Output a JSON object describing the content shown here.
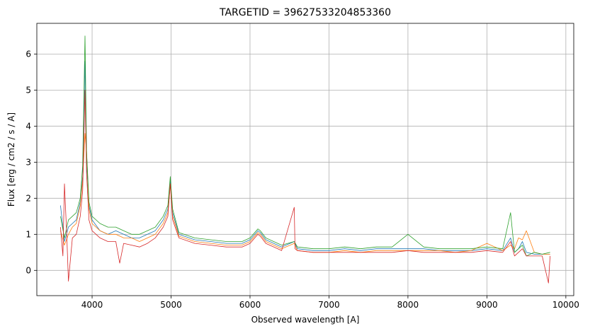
{
  "chart_data": {
    "type": "line",
    "title": "TARGETID = 39627533204853360",
    "xlabel": "Observed wavelength [A]",
    "ylabel": "Flux [erg / cm2 / s / A]",
    "xlim": [
      3300,
      10100
    ],
    "ylim": [
      -0.7,
      6.85
    ],
    "xticks": [
      4000,
      5000,
      6000,
      7000,
      8000,
      9000,
      10000
    ],
    "yticks": [
      0,
      1,
      2,
      3,
      4,
      5,
      6
    ],
    "grid": true,
    "legend": "none",
    "colors": [
      "#1f77b4",
      "#ff7f0e",
      "#2ca02c",
      "#d62728"
    ],
    "series": [
      {
        "color": "#1f77b4",
        "x": [
          3600,
          3650,
          3700,
          3750,
          3800,
          3850,
          3880,
          3910,
          3930,
          3960,
          4000,
          4100,
          4200,
          4300,
          4400,
          4500,
          4600,
          4700,
          4800,
          4900,
          4960,
          4990,
          5020,
          5100,
          5300,
          5500,
          5700,
          5900,
          6000,
          6100,
          6130,
          6200,
          6400,
          6560,
          6600,
          6800,
          7000,
          7200,
          7400,
          7600,
          7800,
          8000,
          8200,
          8400,
          8600,
          8800,
          9000,
          9200,
          9300,
          9350,
          9400,
          9450,
          9500,
          9600,
          9700,
          9800
        ],
        "y": [
          1.8,
          0.8,
          1.2,
          1.3,
          1.4,
          1.9,
          2.6,
          5.8,
          3.0,
          1.8,
          1.4,
          1.1,
          1.0,
          1.1,
          1.0,
          0.9,
          0.9,
          1.0,
          1.1,
          1.4,
          1.7,
          2.5,
          1.6,
          1.0,
          0.85,
          0.8,
          0.75,
          0.75,
          0.85,
          1.1,
          1.05,
          0.85,
          0.65,
          0.8,
          0.6,
          0.55,
          0.55,
          0.6,
          0.55,
          0.6,
          0.6,
          0.6,
          0.6,
          0.55,
          0.55,
          0.55,
          0.6,
          0.55,
          0.9,
          0.5,
          0.6,
          0.8,
          0.5,
          0.45,
          0.45,
          0.45
        ]
      },
      {
        "color": "#ff7f0e",
        "x": [
          3600,
          3650,
          3700,
          3750,
          3800,
          3850,
          3880,
          3910,
          3930,
          3960,
          4000,
          4100,
          4200,
          4300,
          4400,
          4500,
          4600,
          4700,
          4800,
          4900,
          4960,
          4990,
          5020,
          5100,
          5300,
          5500,
          5700,
          5900,
          6000,
          6100,
          6130,
          6200,
          6400,
          6560,
          6600,
          6800,
          7000,
          7200,
          7400,
          7600,
          7800,
          8000,
          8200,
          8400,
          8600,
          8800,
          9000,
          9200,
          9300,
          9350,
          9400,
          9450,
          9500,
          9600,
          9700,
          9800
        ],
        "y": [
          1.1,
          0.7,
          1.0,
          1.2,
          1.3,
          1.8,
          2.5,
          3.8,
          3.3,
          1.7,
          1.3,
          1.1,
          1.0,
          1.0,
          0.9,
          0.9,
          0.8,
          0.9,
          1.0,
          1.3,
          1.6,
          2.4,
          1.5,
          0.95,
          0.8,
          0.75,
          0.7,
          0.7,
          0.8,
          1.05,
          1.0,
          0.8,
          0.6,
          0.75,
          0.55,
          0.5,
          0.5,
          0.55,
          0.5,
          0.55,
          0.55,
          0.55,
          0.55,
          0.55,
          0.5,
          0.55,
          0.75,
          0.55,
          0.7,
          0.6,
          0.9,
          0.85,
          1.1,
          0.5,
          0.45,
          0.45
        ]
      },
      {
        "color": "#2ca02c",
        "x": [
          3600,
          3650,
          3700,
          3750,
          3800,
          3850,
          3880,
          3910,
          3930,
          3960,
          4000,
          4100,
          4200,
          4300,
          4400,
          4500,
          4600,
          4700,
          4800,
          4900,
          4960,
          4990,
          5020,
          5100,
          5300,
          5500,
          5700,
          5900,
          6000,
          6100,
          6130,
          6200,
          6400,
          6560,
          6600,
          6800,
          7000,
          7200,
          7400,
          7600,
          7800,
          8000,
          8200,
          8400,
          8600,
          8800,
          9000,
          9200,
          9300,
          9350,
          9400,
          9450,
          9500,
          9600,
          9700,
          9800
        ],
        "y": [
          1.5,
          0.9,
          1.4,
          1.5,
          1.6,
          2.0,
          2.9,
          6.5,
          3.3,
          1.9,
          1.5,
          1.3,
          1.2,
          1.2,
          1.1,
          1.0,
          1.0,
          1.1,
          1.2,
          1.5,
          1.8,
          2.6,
          1.7,
          1.05,
          0.9,
          0.85,
          0.8,
          0.8,
          0.9,
          1.15,
          1.1,
          0.9,
          0.7,
          0.8,
          0.65,
          0.6,
          0.6,
          0.65,
          0.6,
          0.65,
          0.65,
          1.0,
          0.65,
          0.6,
          0.6,
          0.6,
          0.65,
          0.6,
          1.6,
          0.5,
          0.6,
          0.7,
          0.4,
          0.5,
          0.45,
          0.5
        ]
      },
      {
        "color": "#d62728",
        "x": [
          3600,
          3630,
          3650,
          3680,
          3700,
          3750,
          3800,
          3850,
          3880,
          3910,
          3930,
          3960,
          4000,
          4100,
          4200,
          4300,
          4350,
          4400,
          4500,
          4600,
          4700,
          4800,
          4900,
          4960,
          4990,
          5020,
          5100,
          5300,
          5500,
          5700,
          5900,
          6000,
          6100,
          6130,
          6200,
          6400,
          6560,
          6570,
          6600,
          6800,
          7000,
          7200,
          7400,
          7600,
          7800,
          8000,
          8200,
          8400,
          8600,
          8800,
          9000,
          9200,
          9300,
          9350,
          9400,
          9450,
          9500,
          9600,
          9700,
          9780,
          9800
        ],
        "y": [
          1.2,
          0.4,
          2.4,
          0.9,
          -0.3,
          0.9,
          1.0,
          1.5,
          2.2,
          5.0,
          2.7,
          1.4,
          1.1,
          0.9,
          0.8,
          0.8,
          0.2,
          0.75,
          0.7,
          0.65,
          0.75,
          0.9,
          1.2,
          1.5,
          2.4,
          1.4,
          0.9,
          0.75,
          0.7,
          0.65,
          0.65,
          0.75,
          1.0,
          0.95,
          0.75,
          0.55,
          1.75,
          0.6,
          0.55,
          0.5,
          0.5,
          0.5,
          0.5,
          0.5,
          0.5,
          0.55,
          0.5,
          0.5,
          0.5,
          0.5,
          0.55,
          0.5,
          0.8,
          0.4,
          0.5,
          0.6,
          0.4,
          0.4,
          0.4,
          -0.35,
          0.4
        ]
      }
    ]
  }
}
